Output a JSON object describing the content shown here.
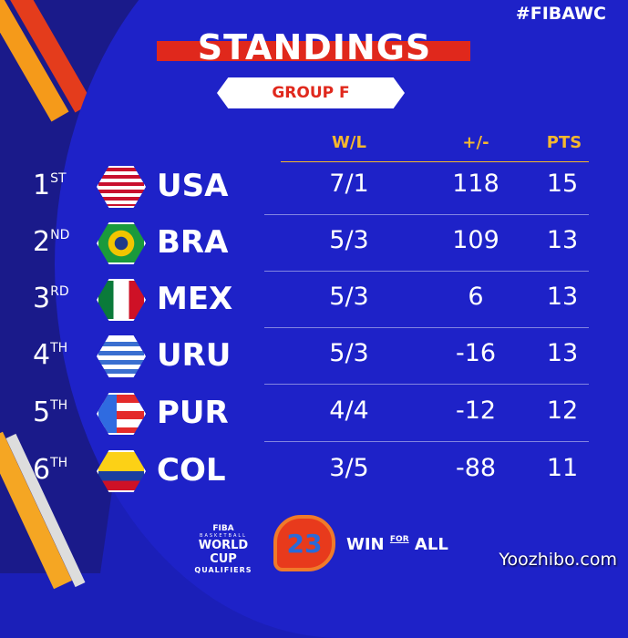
{
  "hashtag": "#FIBAWC",
  "title": "STANDINGS",
  "group": "GROUP F",
  "headers": {
    "wl": "W/L",
    "diff": "+/-",
    "pts": "PTS"
  },
  "rows": [
    {
      "rank": "1",
      "suffix": "ST",
      "team": "USA",
      "wl": "7/1",
      "diff": "118",
      "pts": "15",
      "flag": "usa"
    },
    {
      "rank": "2",
      "suffix": "ND",
      "team": "BRA",
      "wl": "5/3",
      "diff": "109",
      "pts": "13",
      "flag": "brazil"
    },
    {
      "rank": "3",
      "suffix": "RD",
      "team": "MEX",
      "wl": "5/3",
      "diff": "6",
      "pts": "13",
      "flag": "mexico"
    },
    {
      "rank": "4",
      "suffix": "TH",
      "team": "URU",
      "wl": "5/3",
      "diff": "-16",
      "pts": "13",
      "flag": "uruguay"
    },
    {
      "rank": "5",
      "suffix": "TH",
      "team": "PUR",
      "wl": "4/4",
      "diff": "-12",
      "pts": "12",
      "flag": "puerto-rico"
    },
    {
      "rank": "6",
      "suffix": "TH",
      "team": "COL",
      "wl": "3/5",
      "diff": "-88",
      "pts": "11",
      "flag": "colombia"
    }
  ],
  "footer": {
    "fiba": "FIBA",
    "basketball": "BASKETBALL",
    "world_cup": "WORLD CUP",
    "qualifiers": "QUALIFIERS",
    "logo": "23",
    "win": "WIN",
    "for": "FOR",
    "all": "ALL"
  },
  "watermark": "Yoozhibo.com",
  "colors": {
    "background": "#1b1fb8",
    "accent_red": "#e0281c",
    "header_gold": "#f5b82e"
  }
}
